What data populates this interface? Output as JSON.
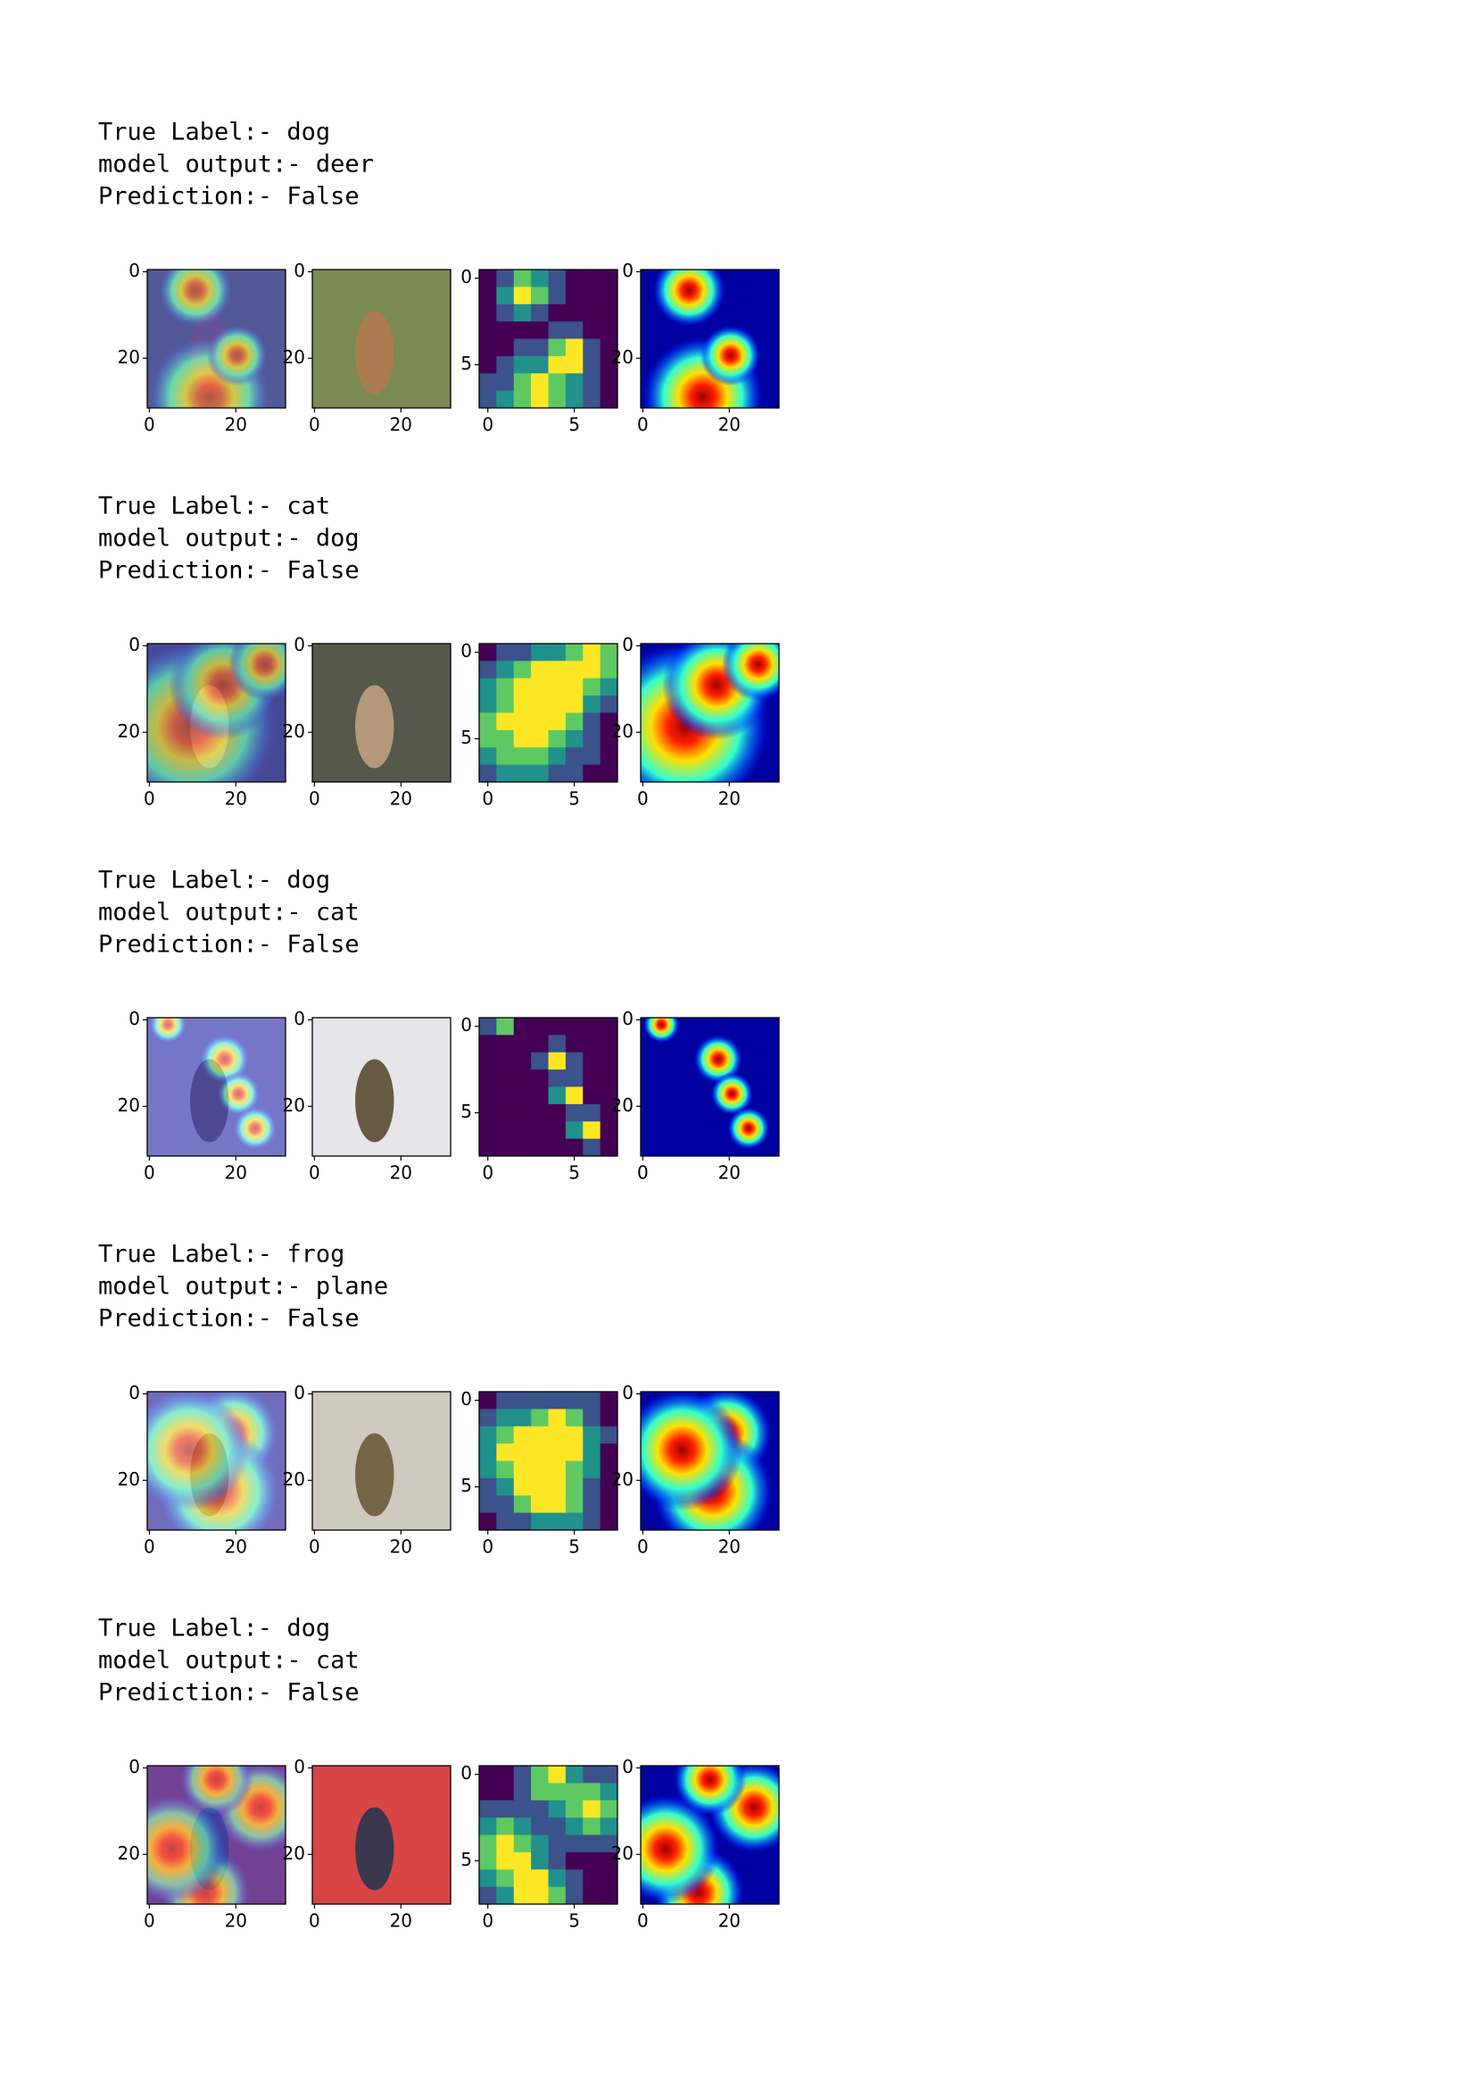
{
  "blocks": [
    {
      "lines": [
        "True Label:- dog",
        "model output:- deer",
        "Prediction:- False"
      ]
    },
    {
      "lines": [
        "True Label:- cat",
        "model output:- dog",
        "Prediction:- False"
      ]
    },
    {
      "lines": [
        "True Label:- dog",
        "model output:- cat",
        "Prediction:- False"
      ]
    },
    {
      "lines": [
        "True Label:- frog",
        "model output:- plane",
        "Prediction:- False"
      ]
    },
    {
      "lines": [
        "True Label:- dog",
        "model output:- cat",
        "Prediction:- False"
      ]
    }
  ],
  "axes": [
    {
      "xlim": [
        -0.5,
        31.5
      ],
      "ylim": [
        -0.5,
        31.5
      ],
      "xticks": [
        0,
        20
      ],
      "yticks": [
        0,
        20
      ]
    },
    {
      "xlim": [
        -0.5,
        31.5
      ],
      "ylim": [
        -0.5,
        31.5
      ],
      "xticks": [
        0,
        20
      ],
      "yticks": [
        0,
        20
      ]
    },
    {
      "xlim": [
        -0.5,
        7.5
      ],
      "ylim": [
        -0.5,
        7.5
      ],
      "xticks": [
        0,
        5
      ],
      "yticks": [
        0,
        5
      ]
    },
    {
      "xlim": [
        -0.5,
        31.5
      ],
      "ylim": [
        -0.5,
        31.5
      ],
      "xticks": [
        0,
        20
      ],
      "yticks": [
        0,
        20
      ]
    }
  ]
}
